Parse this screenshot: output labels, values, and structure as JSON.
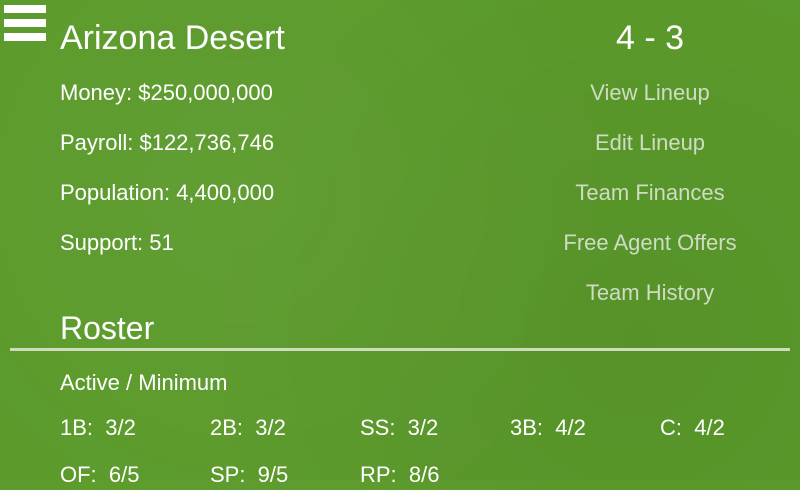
{
  "header": {
    "team_name": "Arizona Desert",
    "record": "4 - 3",
    "menu_icon": "hamburger-icon"
  },
  "stats": [
    "Money: $250,000,000",
    "Payroll: $122,736,746",
    "Population: 4,400,000",
    "Support: 51"
  ],
  "links": [
    "View Lineup",
    "Edit Lineup",
    "Team Finances",
    "Free Agent Offers",
    "Team History"
  ],
  "roster": {
    "title": "Roster",
    "subtitle": "Active / Minimum",
    "positions": [
      "1B:  3/2",
      "2B:  3/2",
      "SS:  3/2",
      "3B:  4/2",
      "C:  4/2",
      "OF:  6/5",
      "SP:  9/5",
      "RP:  8/6"
    ]
  },
  "colors": {
    "background": "#5b9a2b",
    "link": "#cfdcc4"
  }
}
